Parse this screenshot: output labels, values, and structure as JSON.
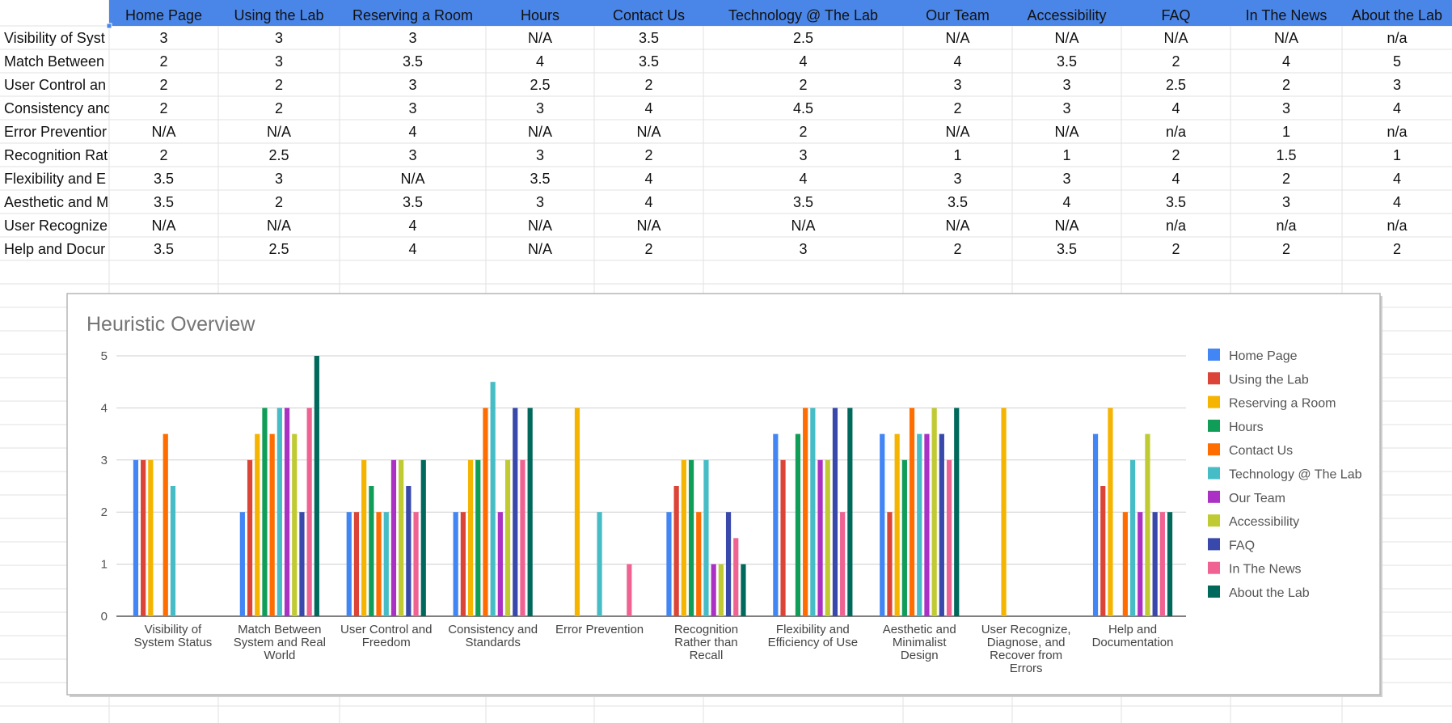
{
  "sheet": {
    "header": [
      "",
      "Home Page",
      "Using the Lab",
      "Reserving a Room",
      "Hours",
      "Contact Us",
      "Technology @ The Lab",
      "Our Team",
      "Accessibility",
      "FAQ",
      "In The News",
      "About the Lab"
    ],
    "rows": [
      {
        "label": "Visibility of Syst",
        "values": [
          "3",
          "3",
          "3",
          "N/A",
          "3.5",
          "2.5",
          "N/A",
          "N/A",
          "N/A",
          "N/A",
          "n/a"
        ]
      },
      {
        "label": "Match Between",
        "values": [
          "2",
          "3",
          "3.5",
          "4",
          "3.5",
          "4",
          "4",
          "3.5",
          "2",
          "4",
          "5"
        ]
      },
      {
        "label": "User Control an",
        "values": [
          "2",
          "2",
          "3",
          "2.5",
          "2",
          "2",
          "3",
          "3",
          "2.5",
          "2",
          "3"
        ]
      },
      {
        "label": "Consistency and",
        "values": [
          "2",
          "2",
          "3",
          "3",
          "4",
          "4.5",
          "2",
          "3",
          "4",
          "3",
          "4"
        ]
      },
      {
        "label": "Error Preventior",
        "values": [
          "N/A",
          "N/A",
          "4",
          "N/A",
          "N/A",
          "2",
          "N/A",
          "N/A",
          "n/a",
          "1",
          "n/a"
        ]
      },
      {
        "label": "Recognition Rat",
        "values": [
          "2",
          "2.5",
          "3",
          "3",
          "2",
          "3",
          "1",
          "1",
          "2",
          "1.5",
          "1"
        ]
      },
      {
        "label": "Flexibility and E",
        "values": [
          "3.5",
          "3",
          "N/A",
          "3.5",
          "4",
          "4",
          "3",
          "3",
          "4",
          "2",
          "4"
        ]
      },
      {
        "label": "Aesthetic and M",
        "values": [
          "3.5",
          "2",
          "3.5",
          "3",
          "4",
          "3.5",
          "3.5",
          "4",
          "3.5",
          "3",
          "4"
        ]
      },
      {
        "label": "User Recognize",
        "values": [
          "N/A",
          "N/A",
          "4",
          "N/A",
          "N/A",
          "N/A",
          "N/A",
          "N/A",
          "n/a",
          "n/a",
          "n/a"
        ]
      },
      {
        "label": "Help and Docur",
        "values": [
          "3.5",
          "2.5",
          "4",
          "N/A",
          "2",
          "3",
          "2",
          "3.5",
          "2",
          "2",
          "2"
        ]
      }
    ]
  },
  "chart_data": {
    "type": "bar",
    "title": "Heuristic Overview",
    "xlabel": "",
    "ylabel": "",
    "ylim": [
      0,
      5
    ],
    "yticks": [
      "0",
      "1",
      "2",
      "3",
      "4",
      "5"
    ],
    "grid": true,
    "legend_position": "right",
    "categories": [
      [
        "Visibility of",
        "System Status"
      ],
      [
        "Match Between",
        "System and Real",
        "World"
      ],
      [
        "User Control and",
        "Freedom"
      ],
      [
        "Consistency and",
        "Standards"
      ],
      [
        "Error Prevention"
      ],
      [
        "Recognition",
        "Rather than",
        "Recall"
      ],
      [
        "Flexibility and",
        "Efficiency of Use"
      ],
      [
        "Aesthetic and",
        "Minimalist",
        "Design"
      ],
      [
        "User Recognize,",
        "Diagnose, and",
        "Recover from",
        "Errors"
      ],
      [
        "Help and",
        "Documentation"
      ]
    ],
    "series": [
      {
        "name": "Home Page",
        "color": "#4285f4",
        "values": [
          3,
          2,
          2,
          2,
          null,
          2,
          3.5,
          3.5,
          null,
          3.5
        ]
      },
      {
        "name": "Using the Lab",
        "color": "#db4437",
        "values": [
          3,
          3,
          2,
          2,
          null,
          2.5,
          3,
          2,
          null,
          2.5
        ]
      },
      {
        "name": "Reserving a Room",
        "color": "#f4b400",
        "values": [
          3,
          3.5,
          3,
          3,
          4,
          3,
          null,
          3.5,
          4,
          4
        ]
      },
      {
        "name": "Hours",
        "color": "#0f9d58",
        "values": [
          null,
          4,
          2.5,
          3,
          null,
          3,
          3.5,
          3,
          null,
          null
        ]
      },
      {
        "name": "Contact Us",
        "color": "#ff6d00",
        "values": [
          3.5,
          3.5,
          2,
          4,
          null,
          2,
          4,
          4,
          null,
          2
        ]
      },
      {
        "name": "Technology @ The Lab",
        "color": "#46bdc6",
        "values": [
          2.5,
          4,
          2,
          4.5,
          2,
          3,
          4,
          3.5,
          null,
          3
        ]
      },
      {
        "name": "Our Team",
        "color": "#ab30c4",
        "values": [
          null,
          4,
          3,
          2,
          null,
          1,
          3,
          3.5,
          null,
          2
        ]
      },
      {
        "name": "Accessibility",
        "color": "#c0ca33",
        "values": [
          null,
          3.5,
          3,
          3,
          null,
          1,
          3,
          4,
          null,
          3.5
        ]
      },
      {
        "name": "FAQ",
        "color": "#3949ab",
        "values": [
          null,
          2,
          2.5,
          4,
          null,
          2,
          4,
          3.5,
          null,
          2
        ]
      },
      {
        "name": "In The News",
        "color": "#f06292",
        "values": [
          null,
          4,
          2,
          3,
          1,
          1.5,
          2,
          3,
          null,
          2
        ]
      },
      {
        "name": "About the Lab",
        "color": "#00695c",
        "values": [
          null,
          5,
          3,
          4,
          null,
          1,
          4,
          4,
          null,
          2
        ]
      }
    ]
  },
  "colors": {
    "header_bg": "#4a86e8",
    "grid": "#e2e2e2",
    "title": "#757575"
  }
}
